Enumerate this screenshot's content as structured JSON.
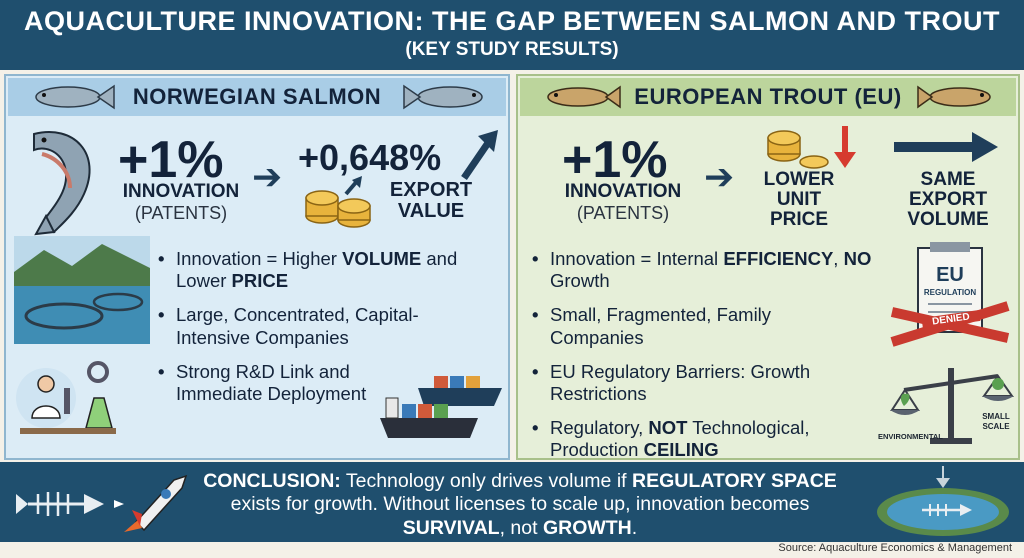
{
  "header": {
    "title": "AQUACULTURE INNOVATION: THE GAP BETWEEN SALMON AND TROUT",
    "subtitle": "(KEY STUDY RESULTS)"
  },
  "left": {
    "title": "NORWEGIAN SALMON",
    "innovation_value": "+1%",
    "innovation_label": "INNOVATION",
    "innovation_sub": "(PATENTS)",
    "export_value": "+0,648%",
    "export_label_1": "EXPORT",
    "export_label_2": "VALUE",
    "bullets": [
      {
        "pre": "Innovation = Higher ",
        "b1": "VOLUME",
        "mid": " and Lower ",
        "b2": "PRICE",
        "post": ""
      },
      {
        "pre": "Large, Concentrated, Capital-Intensive Companies",
        "b1": "",
        "mid": "",
        "b2": "",
        "post": ""
      },
      {
        "pre": "Strong R&D Link and Immediate Deployment",
        "b1": "",
        "mid": "",
        "b2": "",
        "post": ""
      }
    ]
  },
  "right": {
    "title": "EUROPEAN TROUT (EU)",
    "innovation_value": "+1%",
    "innovation_label": "INNOVATION",
    "innovation_sub": "(PATENTS)",
    "price_label_1": "LOWER",
    "price_label_2": "UNIT",
    "price_label_3": "PRICE",
    "volume_label_1": "SAME",
    "volume_label_2": "EXPORT",
    "volume_label_3": "VOLUME",
    "bullets": [
      {
        "pre": "Innovation = Internal ",
        "b1": "EFFICIENCY",
        "mid": ", ",
        "b2": "NO",
        "post": " Growth"
      },
      {
        "pre": "Small, Fragmented, Family Companies",
        "b1": "",
        "mid": "",
        "b2": "",
        "post": ""
      },
      {
        "pre": "EU Regulatory Barriers: Growth Restrictions",
        "b1": "",
        "mid": "",
        "b2": "",
        "post": ""
      },
      {
        "pre": "Regulatory, ",
        "b1": "NOT",
        "mid": " Technological, Production ",
        "b2": "CEILING",
        "post": ""
      }
    ],
    "eu_doc_title": "EU",
    "eu_doc_sub": "REGULATION",
    "eu_stamp": "DENIED",
    "scale_left": "ENVIRONMENTAL",
    "scale_right_1": "SMALL",
    "scale_right_2": "SCALE"
  },
  "conclusion": {
    "lead": "CONCLUSION:",
    "t1": " Technology only drives volume if ",
    "b1": "REGULATORY SPACE",
    "t2": " exists for growth. Without licenses to scale up, innovation becomes ",
    "b2": "SURVIVAL",
    "t3": ", not ",
    "b3": "GROWTH",
    "t4": "."
  },
  "source": "Source: Aquaculture Economics & Management",
  "colors": {
    "header_bg": "#1f4f6e",
    "salmon_panel": "#dcecf6",
    "trout_panel": "#e6efd9",
    "arrow_red": "#d63b2f",
    "coin_gold": "#e8b33c"
  }
}
